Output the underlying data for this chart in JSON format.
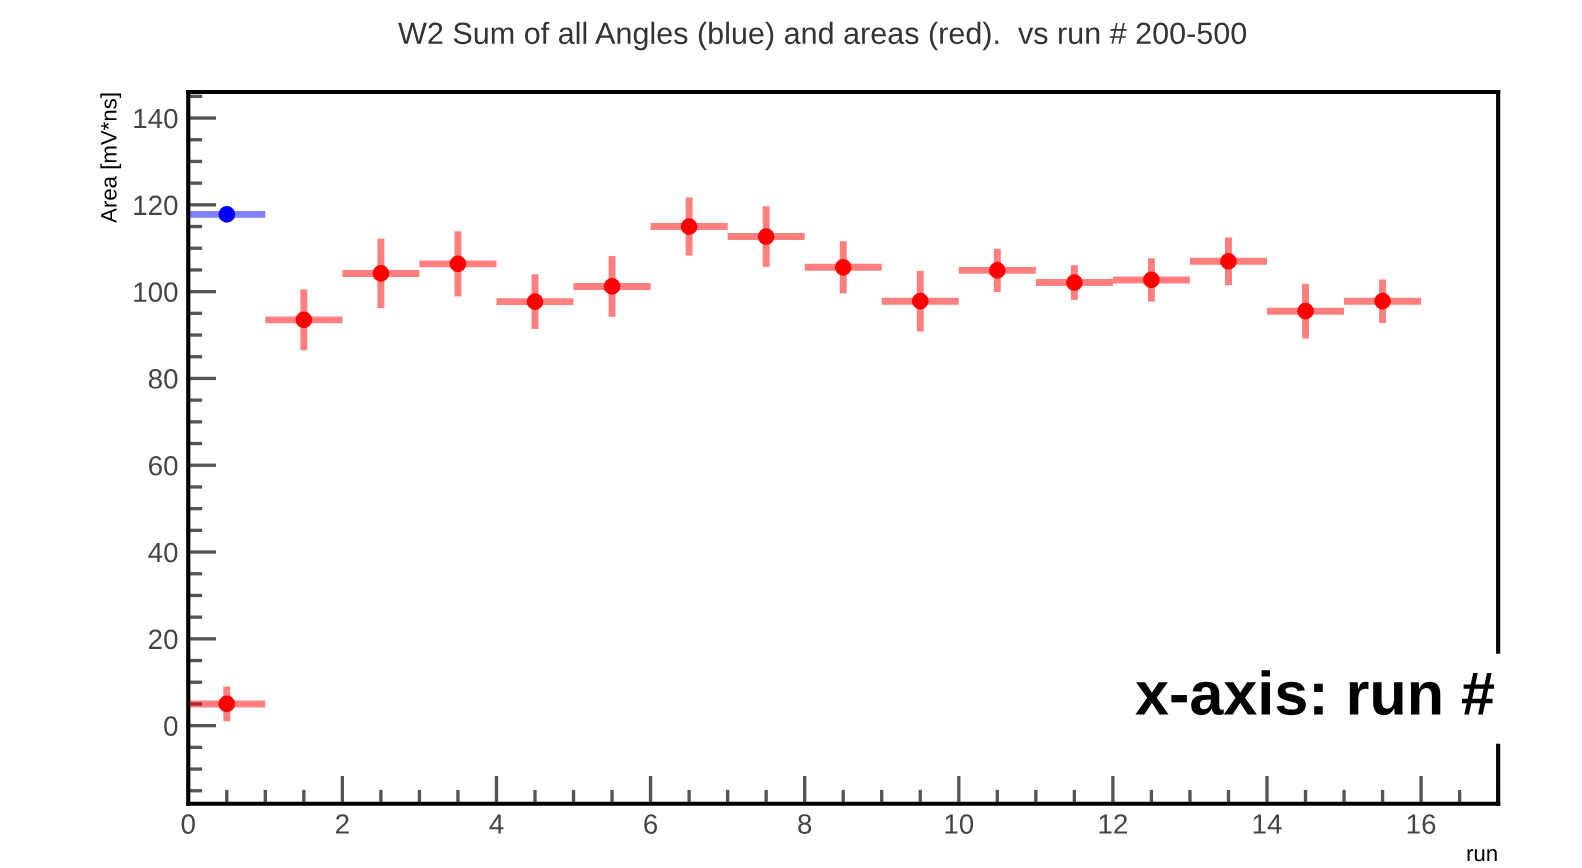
{
  "chart_data": {
    "type": "scatter",
    "title": "W2 Sum of all Angles (blue) and areas (red).  vs run # 200-500",
    "xlabel": "run",
    "ylabel": "Area [mV*ns]",
    "annotations": [
      "x-axis: run #"
    ],
    "series": [
      {
        "color": "#0000ff",
        "x": [
          0.5
        ],
        "values": [
          117.8
        ],
        "xerrors": [
          0.5
        ]
      },
      {
        "color": "#ff0000",
        "x": [
          0.5,
          1.5,
          2.5,
          3.5,
          4.5,
          5.5,
          6.5,
          7.5,
          8.5,
          9.5,
          10.5,
          11.5,
          12.5,
          13.5,
          14.5,
          15.5
        ],
        "values": [
          5,
          93.5,
          104.2,
          106.4,
          97.7,
          101.2,
          115,
          112.7,
          105.6,
          97.8,
          104.9,
          102.1,
          102.7,
          107,
          95.5,
          97.8
        ],
        "errors": [
          4,
          7,
          8,
          7.5,
          6.3,
          7,
          6.7,
          7,
          6,
          7,
          5,
          4,
          5,
          5.5,
          6.3,
          5
        ],
        "xerrors": [
          0.5,
          0.5,
          0.5,
          0.5,
          0.5,
          0.5,
          0.5,
          0.5,
          0.5,
          0.5,
          0.5,
          0.5,
          0.5,
          0.5,
          0.5,
          0.5
        ]
      }
    ],
    "xlim": [
      0,
      17
    ],
    "ylim": [
      -18,
      146
    ],
    "xticks": [
      0,
      2,
      4,
      6,
      8,
      10,
      12,
      14,
      16
    ],
    "yticks": [
      0,
      20,
      40,
      60,
      80,
      100,
      120,
      140
    ],
    "marker": "circle",
    "grid": false,
    "legend": false
  }
}
